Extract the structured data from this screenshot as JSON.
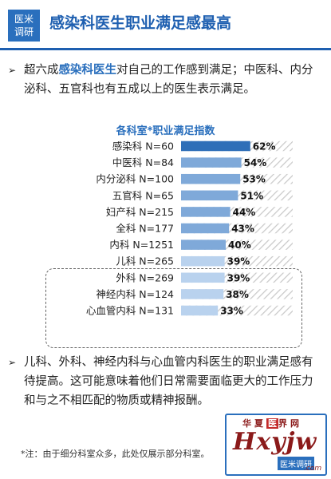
{
  "header": {
    "badge_line1": "医米",
    "badge_line2": "调研",
    "title": "感染科医生职业满足感最高"
  },
  "para1": {
    "arrow": "➢",
    "before": "超六成",
    "highlight": "感染科医生",
    "after": "对自己的工作感到满足；中医科、内分泌科、五官科也有五成以上的医生表示满足。"
  },
  "para2": {
    "arrow": "➢",
    "text": "儿科、外科、神经内科与心血管内科医生的职业满足感有待提高。这可能意味着他们日常需要面临更大的工作压力和与之不相匹配的物质或精神报酬。"
  },
  "footnote": "*注：由于细分科室众多，此处仅展示部分科室。",
  "watermark": {
    "top_a": "华夏",
    "top_hi": "医",
    "top_b": "界网",
    "mid": "Hxyjw",
    "stamp": "医米调研",
    "com": ".com"
  },
  "chart_data": {
    "type": "bar",
    "orientation": "horizontal",
    "title": "各科室*职业满足指数",
    "categories": [
      "感染科 N=60",
      "中医科 N=84",
      "内分泌科 N=100",
      "五官科 N=65",
      "妇产科 N=215",
      "全科 N=177",
      "内科 N=1251",
      "儿科 N=265",
      "外科 N=269",
      "神经内科 N=124",
      "心血管内科 N=131"
    ],
    "values": [
      62,
      54,
      53,
      51,
      44,
      43,
      40,
      39,
      39,
      38,
      33
    ],
    "value_labels": [
      "62%",
      "54%",
      "53%",
      "51%",
      "44%",
      "43%",
      "40%",
      "39%",
      "39%",
      "38%",
      "33%"
    ],
    "xlim": [
      0,
      100
    ],
    "highlighted_group": [
      "儿科 N=265",
      "外科 N=269",
      "神经内科 N=124",
      "心血管内科 N=131"
    ],
    "colors": {
      "bar_dark": "#2f6fb8",
      "bar_mid": "#7fa9d9",
      "bar_light": "#b9d2ee",
      "hatch": "#c9c9c9"
    }
  }
}
